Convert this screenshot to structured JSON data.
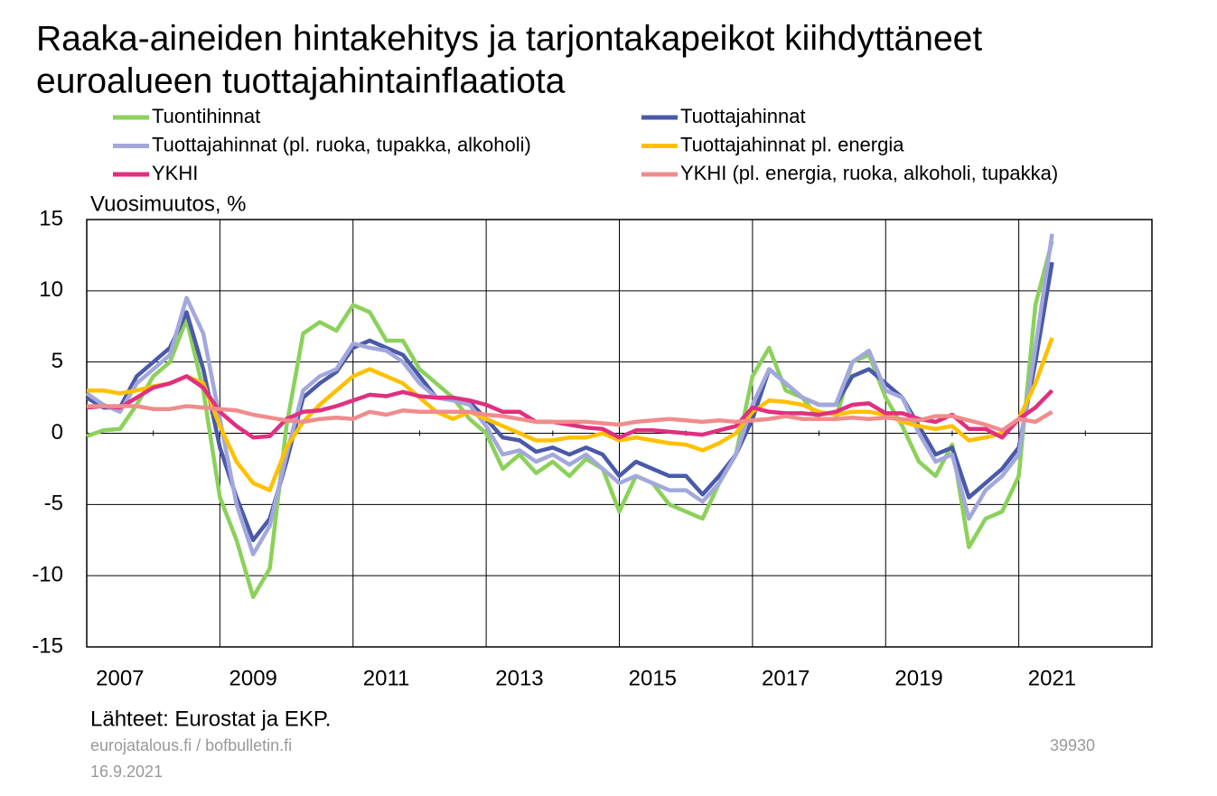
{
  "chart_data": {
    "type": "line",
    "title": [
      "Raaka-aineiden hintakehitys ja tarjontakapeikot kiihdyttäneet",
      "euroalueen tuottajahintainflaatiota"
    ],
    "y_label": "Vuosimuutos, %",
    "source": "Lähteet: Eurostat ja EKP.",
    "x": [
      2007,
      2007.25,
      2007.5,
      2007.75,
      2008,
      2008.25,
      2008.5,
      2008.75,
      2009,
      2009.25,
      2009.5,
      2009.75,
      2010,
      2010.25,
      2010.5,
      2010.75,
      2011,
      2011.25,
      2011.5,
      2011.75,
      2012,
      2012.25,
      2012.5,
      2012.75,
      2013,
      2013.25,
      2013.5,
      2013.75,
      2014,
      2014.25,
      2014.5,
      2014.75,
      2015,
      2015.25,
      2015.5,
      2015.75,
      2016,
      2016.25,
      2016.5,
      2016.75,
      2017,
      2017.25,
      2017.5,
      2017.75,
      2018,
      2018.25,
      2018.5,
      2018.75,
      2019,
      2019.25,
      2019.5,
      2019.75,
      2020,
      2020.25,
      2020.5,
      2020.75,
      2021,
      2021.25,
      2021.5
    ],
    "series": [
      {
        "name": "Tuontihinnat",
        "color": "#8bd15a",
        "values": [
          -0.2,
          0.2,
          0.3,
          2.0,
          4.0,
          5.0,
          8.0,
          3.0,
          -4.5,
          -7.5,
          -11.5,
          -9.5,
          0.5,
          7.0,
          7.8,
          7.2,
          9.0,
          8.5,
          6.5,
          6.5,
          4.5,
          3.5,
          2.5,
          1.0,
          0.0,
          -2.5,
          -1.5,
          -2.8,
          -2.0,
          -3.0,
          -1.8,
          -2.5,
          -5.5,
          -3.0,
          -3.5,
          -5.0,
          -5.5,
          -6.0,
          -3.5,
          -1.5,
          4.0,
          6.0,
          3.0,
          2.5,
          1.0,
          1.0,
          5.0,
          5.5,
          2.5,
          0.5,
          -2.0,
          -3.0,
          -0.8,
          -8.0,
          -6.0,
          -5.5,
          -3.0,
          9.0,
          13.5
        ]
      },
      {
        "name": "Tuottajahinnat",
        "color": "#4a5aa8",
        "values": [
          2.5,
          1.8,
          1.8,
          4.0,
          5.0,
          6.0,
          8.5,
          4.5,
          -1.0,
          -4.5,
          -7.5,
          -6.0,
          -2.0,
          2.5,
          3.5,
          4.3,
          6.0,
          6.5,
          6.0,
          5.5,
          4.0,
          2.5,
          2.5,
          2.2,
          1.0,
          -0.3,
          -0.5,
          -1.3,
          -1.0,
          -1.5,
          -1.0,
          -1.5,
          -3.0,
          -2.0,
          -2.5,
          -3.0,
          -3.0,
          -4.3,
          -3.0,
          -1.5,
          1.0,
          4.5,
          3.5,
          2.5,
          2.0,
          2.0,
          4.0,
          4.5,
          3.5,
          2.5,
          0.5,
          -1.5,
          -1.0,
          -4.5,
          -3.5,
          -2.5,
          -1.0,
          5.0,
          12.0
        ]
      },
      {
        "name": "Tuottajahinnat (pl. ruoka, tupakka, alkoholi)",
        "color": "#a3a8dc",
        "values": [
          2.8,
          2.0,
          1.5,
          3.5,
          4.5,
          5.5,
          9.5,
          7.0,
          1.0,
          -5.0,
          -8.5,
          -6.5,
          -1.5,
          3.0,
          4.0,
          4.5,
          6.3,
          6.0,
          5.8,
          5.0,
          3.5,
          2.5,
          2.3,
          2.0,
          0.5,
          -1.5,
          -1.2,
          -2.0,
          -1.5,
          -2.2,
          -1.5,
          -2.5,
          -3.5,
          -3.0,
          -3.5,
          -4.0,
          -4.0,
          -4.8,
          -3.5,
          -1.5,
          2.0,
          4.5,
          3.5,
          2.5,
          2.0,
          2.0,
          5.0,
          5.8,
          3.0,
          2.5,
          0.0,
          -2.0,
          -1.5,
          -6.0,
          -4.0,
          -3.0,
          -1.5,
          6.0,
          14.0
        ]
      },
      {
        "name": "Tuottajahinnat pl. energia",
        "color": "#ffc000",
        "values": [
          3.0,
          3.0,
          2.8,
          3.0,
          3.3,
          3.5,
          4.0,
          3.5,
          0.5,
          -2.0,
          -3.5,
          -4.0,
          -1.0,
          0.8,
          2.0,
          3.0,
          4.0,
          4.5,
          4.0,
          3.5,
          2.5,
          1.5,
          1.0,
          1.5,
          1.0,
          0.5,
          0.0,
          -0.5,
          -0.5,
          -0.3,
          -0.3,
          0.0,
          -0.5,
          -0.3,
          -0.5,
          -0.7,
          -0.8,
          -1.2,
          -0.7,
          0.0,
          1.5,
          2.3,
          2.2,
          2.0,
          1.5,
          1.3,
          1.5,
          1.5,
          1.3,
          0.8,
          0.5,
          0.3,
          0.5,
          -0.5,
          -0.3,
          0.0,
          1.0,
          3.5,
          6.7
        ]
      },
      {
        "name": "YKHI",
        "color": "#e0307f",
        "values": [
          1.8,
          1.9,
          1.8,
          2.5,
          3.2,
          3.5,
          4.0,
          3.2,
          1.5,
          0.5,
          -0.3,
          -0.2,
          1.0,
          1.5,
          1.6,
          1.9,
          2.3,
          2.7,
          2.6,
          2.9,
          2.6,
          2.5,
          2.5,
          2.3,
          2.0,
          1.5,
          1.5,
          0.8,
          0.8,
          0.6,
          0.4,
          0.3,
          -0.3,
          0.2,
          0.2,
          0.1,
          0.0,
          -0.1,
          0.2,
          0.5,
          1.8,
          1.5,
          1.4,
          1.4,
          1.3,
          1.5,
          2.0,
          2.1,
          1.4,
          1.4,
          1.0,
          0.8,
          1.3,
          0.3,
          0.3,
          -0.3,
          1.0,
          1.8,
          3.0
        ]
      },
      {
        "name": "YKHI (pl. energia, ruoka, alkoholi, tupakka)",
        "color": "#f08c8c",
        "values": [
          1.9,
          1.9,
          1.9,
          1.9,
          1.7,
          1.7,
          1.9,
          1.8,
          1.7,
          1.6,
          1.3,
          1.1,
          0.9,
          0.8,
          1.0,
          1.1,
          1.0,
          1.5,
          1.3,
          1.6,
          1.5,
          1.5,
          1.5,
          1.5,
          1.3,
          1.2,
          1.0,
          0.8,
          0.8,
          0.8,
          0.8,
          0.7,
          0.6,
          0.8,
          0.9,
          1.0,
          0.9,
          0.8,
          0.9,
          0.8,
          0.9,
          1.0,
          1.2,
          1.0,
          1.0,
          1.0,
          1.1,
          1.0,
          1.1,
          1.0,
          0.9,
          1.2,
          1.2,
          0.9,
          0.6,
          0.2,
          1.0,
          0.8,
          1.5
        ]
      }
    ],
    "xlim": [
      2007,
      2023
    ],
    "xticks": [
      2007,
      2009,
      2011,
      2013,
      2015,
      2017,
      2019,
      2021
    ],
    "xminorticks": [
      2008,
      2010,
      2012,
      2014,
      2016,
      2018,
      2020,
      2022
    ],
    "ylim": [
      -15,
      15
    ],
    "yticks": [
      -15,
      -10,
      -5,
      0,
      5,
      10,
      15
    ],
    "grid": true
  },
  "footer": {
    "sites": "eurojatalous.fi  / bofbulletin.fi",
    "date": "16.9.2021",
    "id": "39930"
  }
}
